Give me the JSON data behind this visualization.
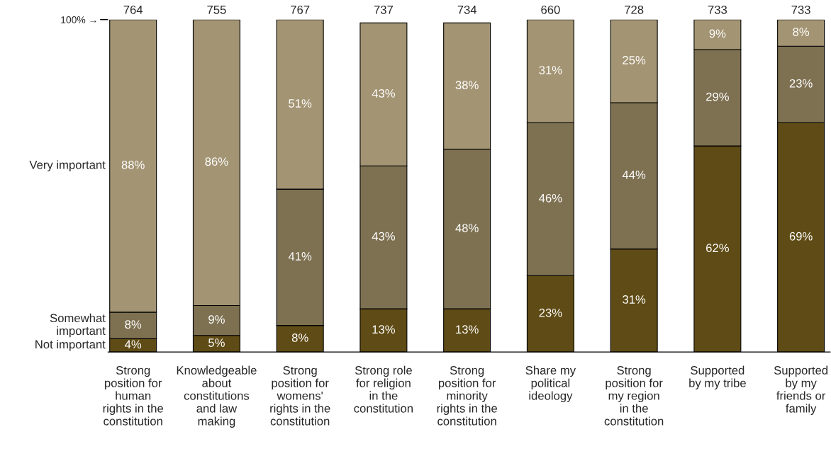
{
  "chart_data": {
    "type": "bar",
    "stacked": true,
    "categories": [
      "Strong\nposition for\nhuman\nrights in the\nconstitution",
      "Knowledgeable\nabout\nconstitutions\nand law\nmaking",
      "Strong\nposition for\nwomens'\nrights in the\nconstitution",
      "Strong role\nfor religion\nin the\nconstitution",
      "Strong\nposition for\nminority\nrights in the\nconstitution",
      "Share my\npolitical\nideology",
      "Strong\nposition for\nmy region\nin the\nconstitution",
      "Supported\nby my tribe",
      "Supported\nby my\nfriends or\nfamily"
    ],
    "series": [
      {
        "name": "Not important",
        "color": "#5f4b15",
        "values": [
          4,
          5,
          8,
          13,
          13,
          23,
          31,
          62,
          69
        ],
        "value_labels": [
          "4%",
          "5%",
          "8%",
          "13%",
          "13%",
          "23%",
          "31%",
          "62%",
          "69%"
        ]
      },
      {
        "name": "Somewhat\nimportant",
        "color": "#7e7152",
        "values": [
          8,
          9,
          41,
          43,
          48,
          46,
          44,
          29,
          23
        ],
        "value_labels": [
          "8%",
          "9%",
          "41%",
          "43%",
          "48%",
          "46%",
          "44%",
          "29%",
          "23%"
        ]
      },
      {
        "name": "Very important",
        "color": "#a39473",
        "values": [
          88,
          86,
          51,
          43,
          38,
          31,
          25,
          9,
          8
        ],
        "value_labels": [
          "88%",
          "86%",
          "51%",
          "43%",
          "38%",
          "31%",
          "25%",
          "9%",
          "8%"
        ]
      }
    ],
    "annotations": [
      {
        "text": "764",
        "x": "Strong\nposition for\nhuman\nrights in the\nconstitution",
        "y": 100
      },
      {
        "text": "755",
        "x": "Knowledgeable\nabout\nconstitutions\nand law\nmaking",
        "y": 100
      },
      {
        "text": "767",
        "x": "Strong\nposition for\nwomens'\nrights in the\nconstitution",
        "y": 100
      },
      {
        "text": "737",
        "x": "Strong role\nfor religion\nin the\nconstitution",
        "y": 100
      },
      {
        "text": "734",
        "x": "Strong\nposition for\nminority\nrights in the\nconstitution",
        "y": 100
      },
      {
        "text": "660",
        "x": "Share my\npolitical\nideology",
        "y": 100
      },
      {
        "text": "728",
        "x": "Strong\nposition for\nmy region\nin the\nconstitution",
        "y": 100
      },
      {
        "text": "733",
        "x": "Supported\nby my tribe",
        "y": 100
      },
      {
        "text": "733",
        "x": "Supported\nby my\nfriends or\nfamily",
        "y": 100
      }
    ],
    "ylim": [
      0,
      100
    ],
    "yticks": [
      {
        "value": 100,
        "label": "100% →"
      }
    ]
  }
}
